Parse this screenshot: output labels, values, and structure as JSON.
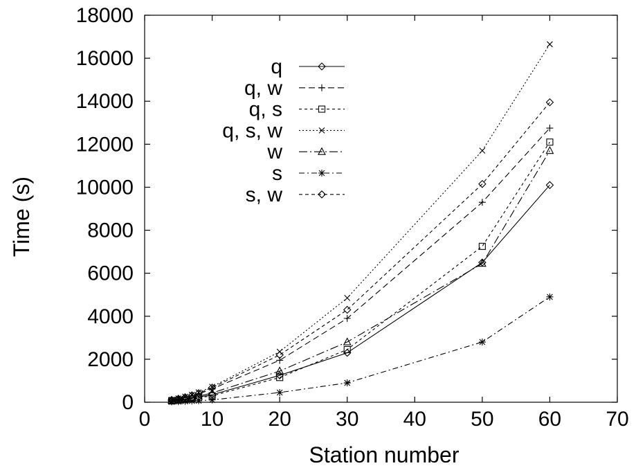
{
  "chart_data": {
    "type": "line",
    "title": "",
    "xlabel": "Station number",
    "ylabel": "Time (s)",
    "xlim": [
      0,
      70
    ],
    "ylim": [
      0,
      18000
    ],
    "xticks": [
      0,
      10,
      20,
      30,
      40,
      50,
      60,
      70
    ],
    "yticks": [
      0,
      2000,
      4000,
      6000,
      8000,
      10000,
      12000,
      14000,
      16000,
      18000
    ],
    "grid": false,
    "legend_position": "top-center",
    "x": [
      4,
      5,
      6,
      7,
      8,
      10,
      20,
      30,
      50,
      60
    ],
    "series": [
      {
        "name": "q",
        "marker": "diamond",
        "dash": "",
        "values": [
          70,
          100,
          140,
          190,
          240,
          350,
          1250,
          2300,
          6500,
          10100
        ]
      },
      {
        "name": "q, w",
        "marker": "plus",
        "dash": "9,5",
        "values": [
          100,
          150,
          210,
          290,
          380,
          620,
          1950,
          3900,
          9300,
          12750
        ]
      },
      {
        "name": "q, s",
        "marker": "square",
        "dash": "4,4",
        "values": [
          60,
          90,
          120,
          160,
          210,
          300,
          1150,
          2450,
          7250,
          12100
        ]
      },
      {
        "name": "q, s, w",
        "marker": "cross",
        "dash": "2,3",
        "values": [
          120,
          180,
          260,
          350,
          460,
          720,
          2350,
          4850,
          11700,
          16650
        ]
      },
      {
        "name": "w",
        "marker": "triangle",
        "dash": "12,4,2,4",
        "values": [
          80,
          115,
          160,
          215,
          280,
          430,
          1450,
          2800,
          6450,
          11700
        ]
      },
      {
        "name": "s",
        "marker": "star",
        "dash": "8,4,2,4",
        "values": [
          20,
          30,
          40,
          55,
          70,
          110,
          450,
          900,
          2800,
          4900
        ]
      },
      {
        "name": "s, w",
        "marker": "diamond",
        "dash": "5,4",
        "values": [
          110,
          165,
          235,
          320,
          420,
          680,
          2200,
          4300,
          10150,
          13950
        ]
      }
    ]
  }
}
